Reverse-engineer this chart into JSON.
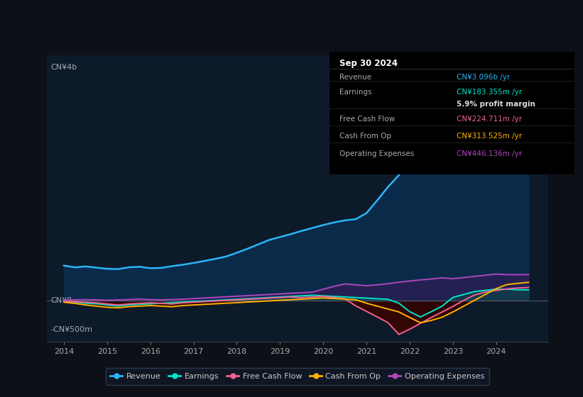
{
  "bg_color": "#0d1117",
  "plot_bg_color": "#0d1a2a",
  "grid_color": "#1e3050",
  "revenue_color": "#29b6f6",
  "earnings_color": "#00e5cc",
  "fcf_color": "#f06292",
  "cashfromop_color": "#ffb300",
  "opex_color": "#ab47bc",
  "revenue_fill": "#0a2a4a",
  "neg_fill": "#3a0808",
  "opex_fill": "#3a1a5a",
  "tooltip_bg": "#000000",
  "tooltip_title": "Sep 30 2024",
  "tooltip_rows": [
    {
      "label": "Revenue",
      "value": "CN¥3.096b /yr",
      "color": "#29b6f6",
      "bold_val": false
    },
    {
      "label": "Earnings",
      "value": "CN¥183.355m /yr",
      "color": "#00e5cc",
      "bold_val": false
    },
    {
      "label": "",
      "value": "5.9% profit margin",
      "color": "#dddddd",
      "bold_val": true
    },
    {
      "label": "Free Cash Flow",
      "value": "CN¥224.711m /yr",
      "color": "#f06292",
      "bold_val": false
    },
    {
      "label": "Cash From Op",
      "value": "CN¥313.525m /yr",
      "color": "#ffb300",
      "bold_val": false
    },
    {
      "label": "Operating Expenses",
      "value": "CN¥446.136m /yr",
      "color": "#ab47bc",
      "bold_val": false
    }
  ],
  "legend_items": [
    {
      "label": "Revenue",
      "color": "#29b6f6"
    },
    {
      "label": "Earnings",
      "color": "#00e5cc"
    },
    {
      "label": "Free Cash Flow",
      "color": "#f06292"
    },
    {
      "label": "Cash From Op",
      "color": "#ffb300"
    },
    {
      "label": "Operating Expenses",
      "color": "#ab47bc"
    }
  ],
  "ylim": [
    -700,
    4200
  ],
  "y_ticks": [
    4000,
    0,
    -500
  ],
  "y_tick_labels": [
    "CN¥4b",
    "CN¥0",
    "-CN¥500m"
  ],
  "x_ticks": [
    2014,
    2015,
    2016,
    2017,
    2018,
    2019,
    2020,
    2021,
    2022,
    2023,
    2024
  ]
}
